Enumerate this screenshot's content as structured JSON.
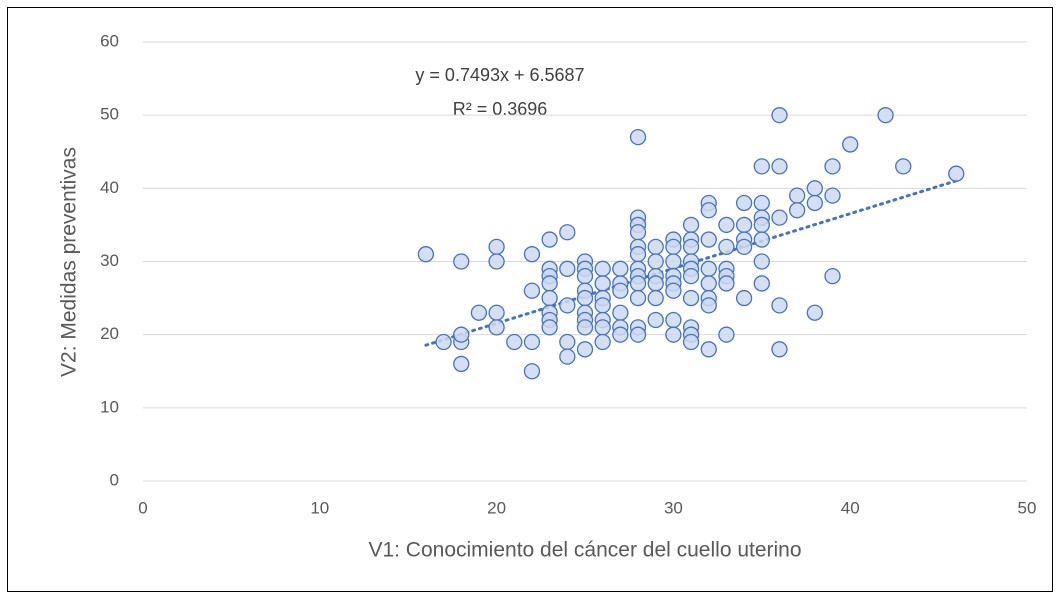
{
  "chart_data": {
    "type": "scatter",
    "x_label": "V1: Conocimiento del cáncer del cuello uterino",
    "y_label": "V2: Medidas preventivas",
    "x": [
      16,
      17,
      18,
      18,
      18,
      18,
      19,
      20,
      20,
      20,
      20,
      21,
      22,
      22,
      22,
      22,
      23,
      23,
      23,
      23,
      23,
      23,
      23,
      23,
      24,
      24,
      24,
      24,
      24,
      25,
      25,
      25,
      25,
      25,
      25,
      25,
      25,
      25,
      26,
      26,
      26,
      26,
      26,
      26,
      26,
      27,
      27,
      27,
      27,
      27,
      27,
      28,
      28,
      28,
      28,
      28,
      28,
      28,
      28,
      28,
      28,
      28,
      28,
      29,
      29,
      29,
      29,
      29,
      29,
      30,
      30,
      30,
      30,
      30,
      30,
      30,
      30,
      31,
      31,
      31,
      31,
      31,
      31,
      31,
      31,
      31,
      31,
      32,
      32,
      32,
      32,
      32,
      32,
      32,
      32,
      33,
      33,
      33,
      33,
      33,
      33,
      34,
      34,
      34,
      34,
      34,
      35,
      35,
      35,
      35,
      35,
      35,
      35,
      36,
      36,
      36,
      36,
      36,
      37,
      37,
      38,
      38,
      38,
      39,
      39,
      39,
      40,
      42,
      43,
      46
    ],
    "values": [
      31,
      19,
      19,
      20,
      16,
      30,
      23,
      32,
      30,
      23,
      21,
      19,
      26,
      31,
      19,
      15,
      33,
      29,
      28,
      27,
      25,
      23,
      22,
      21,
      34,
      29,
      24,
      19,
      17,
      30,
      29,
      28,
      26,
      25,
      23,
      22,
      21,
      18,
      29,
      27,
      25,
      24,
      22,
      21,
      19,
      29,
      27,
      26,
      23,
      21,
      20,
      47,
      36,
      35,
      34,
      32,
      31,
      29,
      28,
      27,
      25,
      21,
      20,
      32,
      30,
      28,
      27,
      25,
      22,
      33,
      32,
      30,
      28,
      27,
      26,
      22,
      20,
      35,
      33,
      32,
      30,
      29,
      28,
      25,
      21,
      20,
      19,
      38,
      37,
      33,
      29,
      27,
      25,
      24,
      18,
      35,
      32,
      29,
      28,
      27,
      20,
      38,
      35,
      33,
      32,
      25,
      43,
      38,
      36,
      35,
      33,
      30,
      27,
      50,
      43,
      36,
      24,
      18,
      39,
      37,
      40,
      38,
      23,
      43,
      39,
      28,
      46,
      50,
      43,
      42
    ],
    "color": "#4472c4",
    "marker_fill": "#cdd9f0",
    "xlim": [
      0,
      50
    ],
    "ylim": [
      0,
      60
    ],
    "xticks": [
      0,
      10,
      20,
      30,
      40,
      50
    ],
    "yticks": [
      0,
      10,
      20,
      30,
      40,
      50,
      60
    ],
    "grid": true,
    "trendline": {
      "slope": 0.7493,
      "intercept": 6.5687,
      "equation": "y = 0.7493x + 6.5687",
      "r_squared": 0.3696,
      "r_squared_label": "R² = 0.3696"
    }
  }
}
